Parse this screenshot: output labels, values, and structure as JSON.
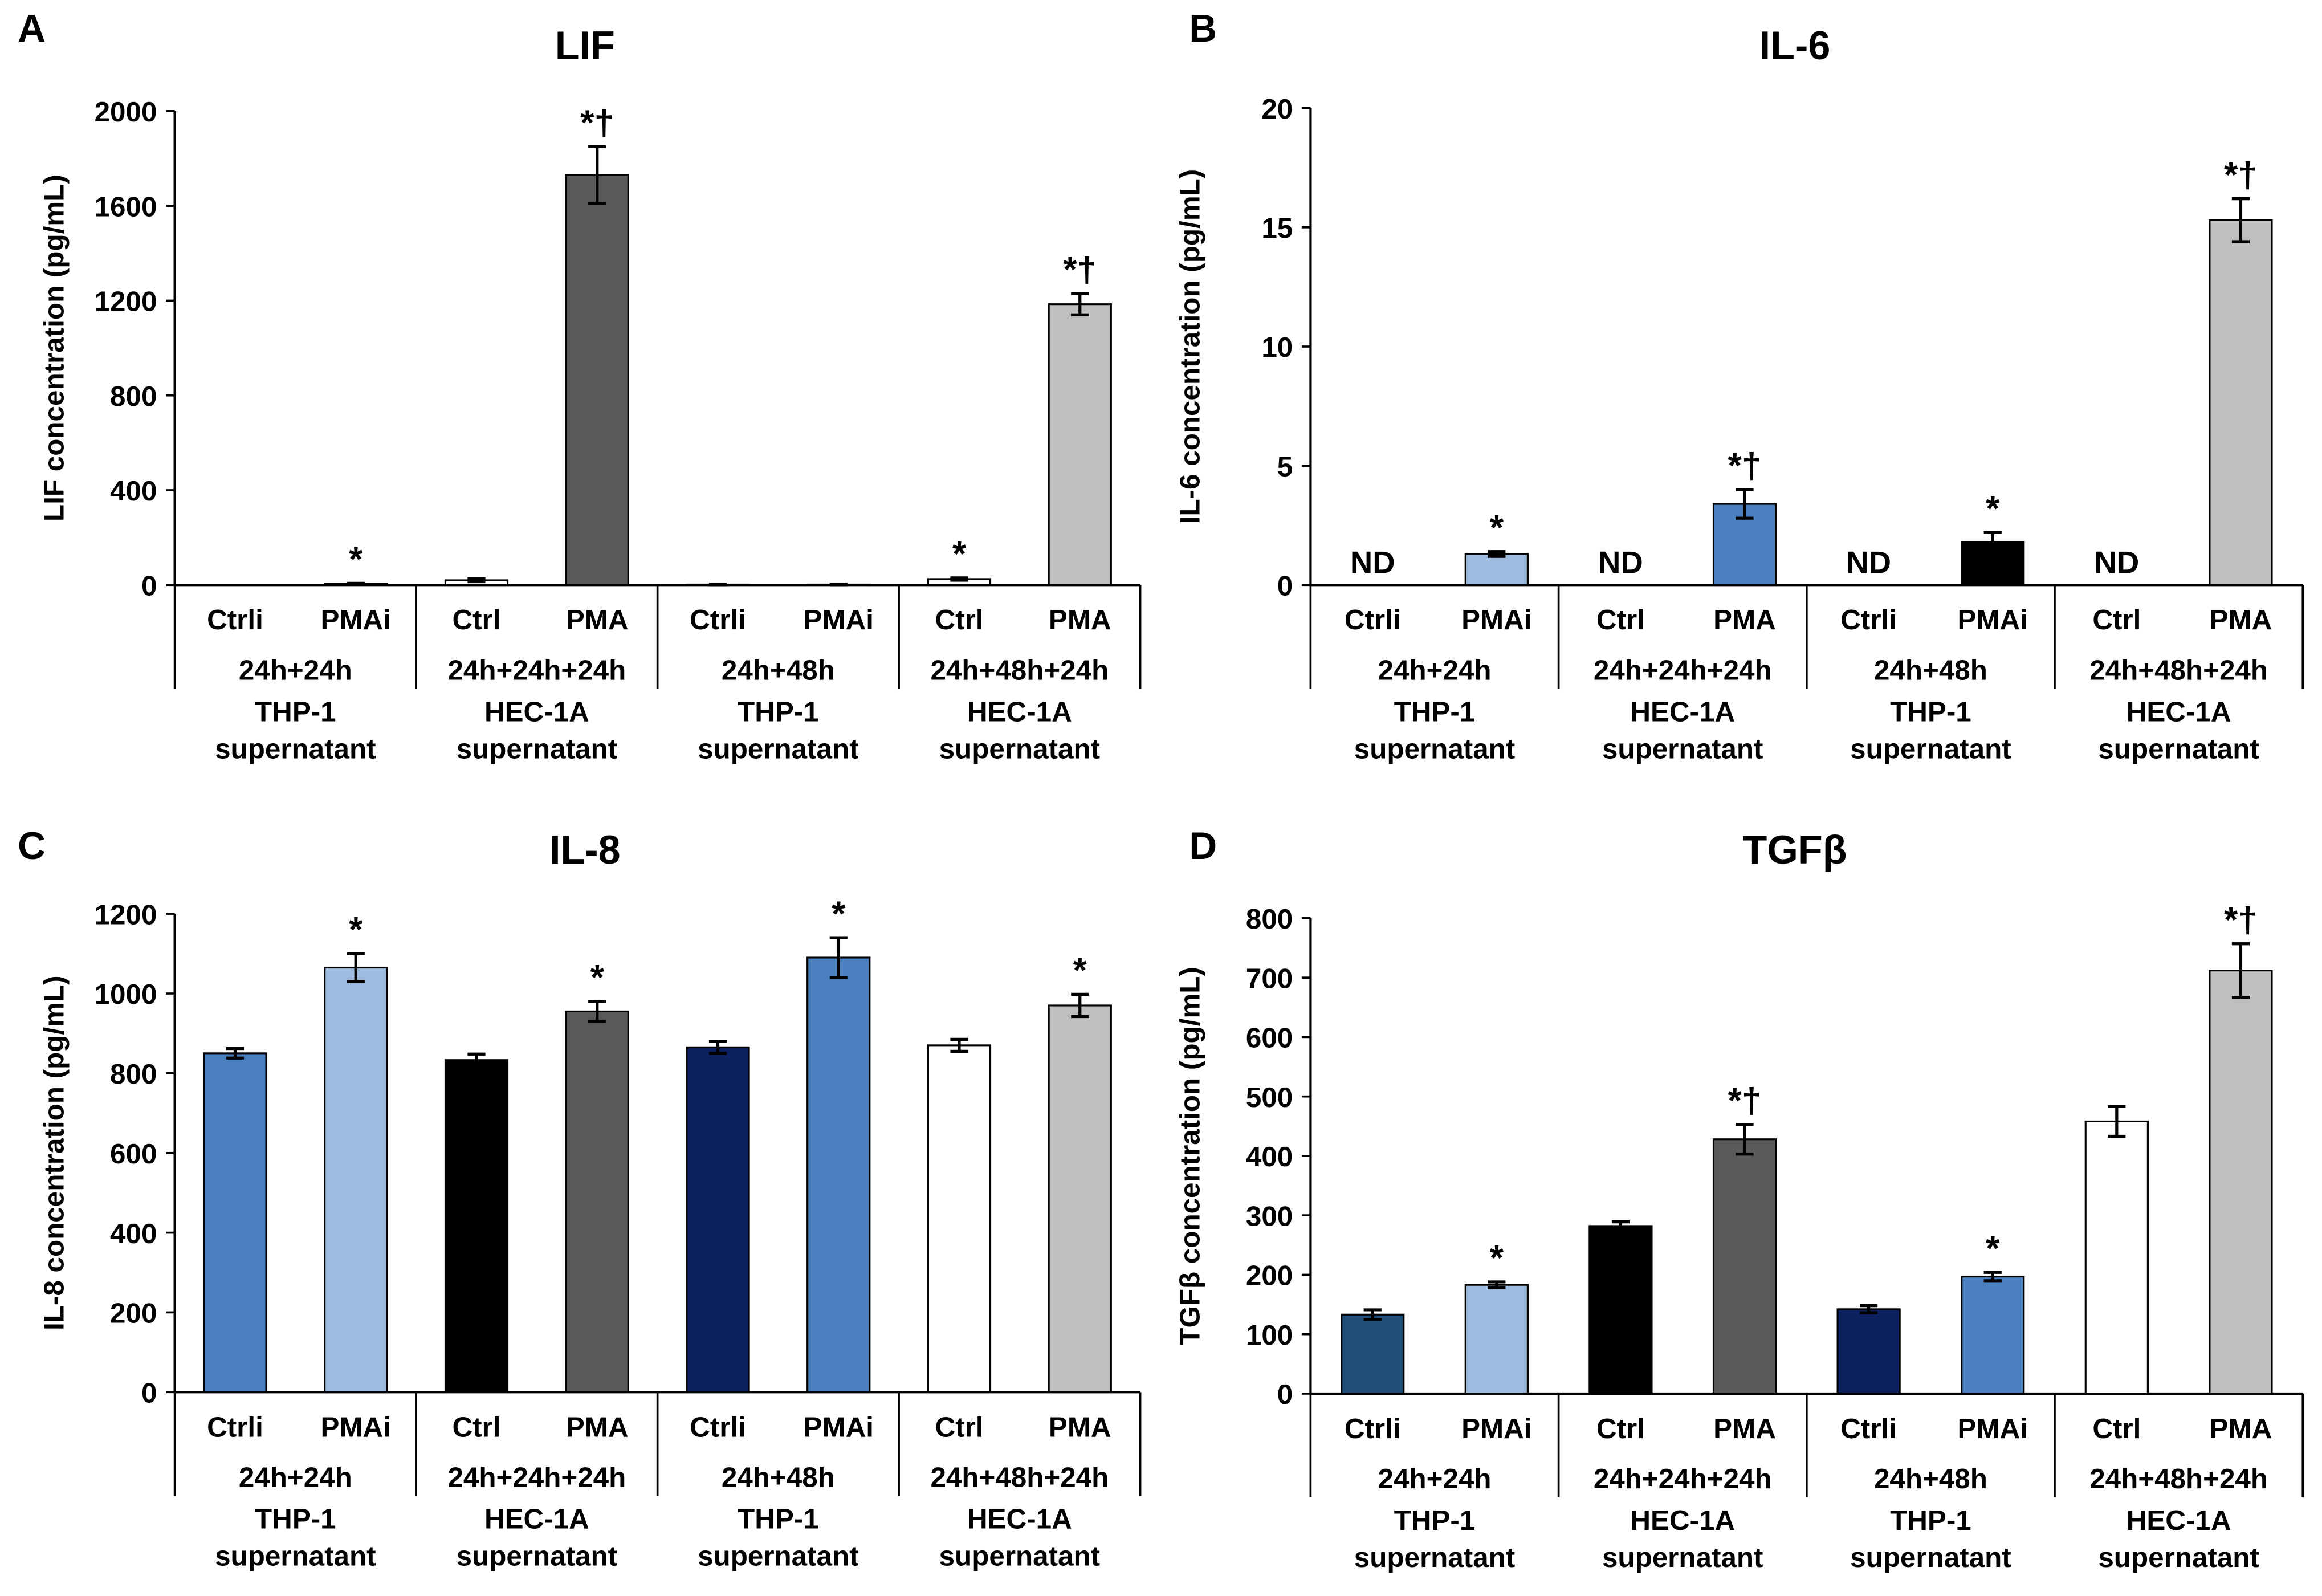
{
  "chart_data": [
    {
      "type": "bar",
      "panel_letter": "A",
      "title": "LIF",
      "ylabel": "LIF concentration (pg/mL)",
      "ylim": [
        0,
        2000
      ],
      "yticks": [
        "0",
        "400",
        "800",
        "1200",
        "1600",
        "2000"
      ],
      "categories": [
        "Ctrli",
        "PMAi",
        "Ctrl",
        "PMA",
        "Ctrli",
        "PMAi",
        "Ctrl",
        "PMA"
      ],
      "time_groups": [
        "24h+24h",
        "24h+24h+24h",
        "24h+48h",
        "24h+48h+24h"
      ],
      "source_groups": [
        [
          "THP-1",
          "supernatant"
        ],
        [
          "HEC-1A",
          "supernatant"
        ],
        [
          "THP-1",
          "supernatant"
        ],
        [
          "HEC-1A",
          "supernatant"
        ]
      ],
      "values": [
        0,
        5,
        20,
        1730,
        2,
        2,
        25,
        1185
      ],
      "errors": [
        0,
        2,
        6,
        120,
        1,
        1,
        5,
        45
      ],
      "colors": [
        "#ffffff",
        "#ffffff",
        "#ffffff",
        "#595959",
        "#ffffff",
        "#ffffff",
        "#ffffff",
        "#bfbfbf"
      ],
      "labels": [
        "",
        "*",
        "",
        "*†",
        "",
        "",
        "*",
        "*†"
      ]
    },
    {
      "type": "bar",
      "panel_letter": "B",
      "title": "IL-6",
      "ylabel": "IL-6 concentration (pg/mL)",
      "ylim": [
        0,
        20
      ],
      "yticks": [
        "0",
        "5",
        "10",
        "15",
        "20"
      ],
      "categories": [
        "Ctrli",
        "PMAi",
        "Ctrl",
        "PMA",
        "Ctrli",
        "PMAi",
        "Ctrl",
        "PMA"
      ],
      "time_groups": [
        "24h+24h",
        "24h+24h+24h",
        "24h+48h",
        "24h+48h+24h"
      ],
      "source_groups": [
        [
          "THP-1",
          "supernatant"
        ],
        [
          "HEC-1A",
          "supernatant"
        ],
        [
          "THP-1",
          "supernatant"
        ],
        [
          "HEC-1A",
          "supernatant"
        ]
      ],
      "values": [
        0,
        1.3,
        0,
        3.4,
        0,
        1.8,
        0,
        15.3
      ],
      "errors": [
        0,
        0.1,
        0,
        0.6,
        0,
        0.4,
        0,
        0.9
      ],
      "colors": [
        "#ffffff",
        "#9dbbde",
        "#ffffff",
        "#4a7fc0",
        "#ffffff",
        "#000000",
        "#ffffff",
        "#bfbfbf"
      ],
      "labels": [
        "ND",
        "*",
        "ND",
        "*†",
        "ND",
        "*",
        "ND",
        "*†"
      ]
    },
    {
      "type": "bar",
      "panel_letter": "C",
      "title": "IL-8",
      "ylabel": "IL-8 concentration (pg/mL)",
      "ylim": [
        0,
        1200
      ],
      "yticks": [
        "0",
        "200",
        "400",
        "600",
        "800",
        "1000",
        "1200"
      ],
      "categories": [
        "Ctrli",
        "PMAi",
        "Ctrl",
        "PMA",
        "Ctrli",
        "PMAi",
        "Ctrl",
        "PMA"
      ],
      "time_groups": [
        "24h+24h",
        "24h+24h+24h",
        "24h+48h",
        "24h+48h+24h"
      ],
      "source_groups": [
        [
          "THP-1",
          "supernatant"
        ],
        [
          "HEC-1A",
          "supernatant"
        ],
        [
          "THP-1",
          "supernatant"
        ],
        [
          "HEC-1A",
          "supernatant"
        ]
      ],
      "values": [
        850,
        1065,
        833,
        955,
        865,
        1090,
        870,
        970
      ],
      "errors": [
        12,
        35,
        15,
        25,
        15,
        50,
        15,
        28
      ],
      "colors": [
        "#4a7fc0",
        "#9dbbde",
        "#000000",
        "#595959",
        "#0d2160",
        "#4a7fc0",
        "#ffffff",
        "#bfbfbf"
      ],
      "labels": [
        "",
        "*",
        "",
        "*",
        "",
        "*",
        "",
        "*"
      ]
    },
    {
      "type": "bar",
      "panel_letter": "D",
      "title": "TGFβ",
      "ylabel": "TGFβ concentration (pg/mL)",
      "ylim": [
        0,
        800
      ],
      "yticks": [
        "0",
        "100",
        "200",
        "300",
        "400",
        "500",
        "600",
        "700",
        "800"
      ],
      "categories": [
        "Ctrli",
        "PMAi",
        "Ctrl",
        "PMA",
        "Ctrli",
        "PMAi",
        "Ctrl",
        "PMA"
      ],
      "time_groups": [
        "24h+24h",
        "24h+24h+24h",
        "24h+48h",
        "24h+48h+24h"
      ],
      "source_groups": [
        [
          "THP-1",
          "supernatant"
        ],
        [
          "HEC-1A",
          "supernatant"
        ],
        [
          "THP-1",
          "supernatant"
        ],
        [
          "HEC-1A",
          "supernatant"
        ]
      ],
      "values": [
        133,
        183,
        282,
        428,
        142,
        197,
        458,
        712
      ],
      "errors": [
        8,
        5,
        7,
        25,
        6,
        7,
        25,
        45
      ],
      "colors": [
        "#1f4e79",
        "#9dbbde",
        "#000000",
        "#595959",
        "#0d2160",
        "#4a7fc0",
        "#ffffff",
        "#bfbfbf"
      ],
      "labels": [
        "",
        "*",
        "",
        "*†",
        "",
        "*",
        "",
        "*†"
      ]
    }
  ]
}
